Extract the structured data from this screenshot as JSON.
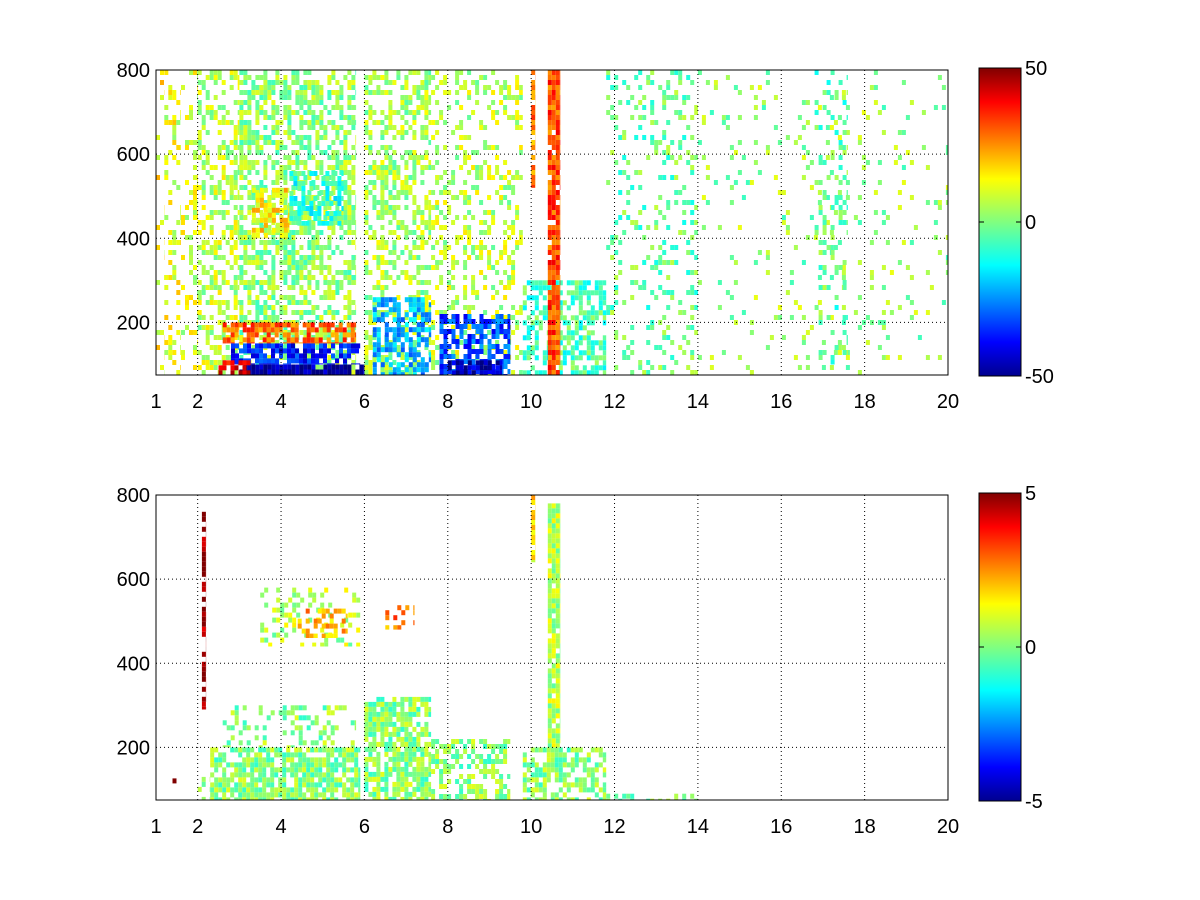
{
  "chart_data": [
    {
      "type": "heatmap",
      "title": "",
      "xlabel": "",
      "ylabel": "",
      "xlim": [
        1,
        20
      ],
      "ylim": [
        75,
        800
      ],
      "xticks": [
        1,
        2,
        4,
        6,
        8,
        10,
        12,
        14,
        16,
        18,
        20
      ],
      "yticks": [
        200,
        400,
        600,
        800
      ],
      "grid": true,
      "colorbar": {
        "colormap": "jet",
        "clim": [
          -50,
          50
        ],
        "ticks": [
          50,
          0,
          -50
        ],
        "tick_labels": [
          "50",
          "0",
          "-50"
        ]
      },
      "bands": [
        {
          "x": [
            1.0,
            1.2
          ],
          "y": [
            75,
            800
          ],
          "value": 12,
          "density": 0.18
        },
        {
          "x": [
            1.2,
            1.6
          ],
          "y": [
            75,
            800
          ],
          "value": 10,
          "density": 0.22
        },
        {
          "x": [
            1.6,
            2.0
          ],
          "y": [
            75,
            800
          ],
          "value": 8,
          "density": 0.28
        },
        {
          "x": [
            2.0,
            3.0
          ],
          "y": [
            75,
            800
          ],
          "value": 6,
          "density": 0.45
        },
        {
          "x": [
            3.0,
            5.8
          ],
          "y": [
            75,
            800
          ],
          "value": 2,
          "density": 0.55
        },
        {
          "x": [
            3.3,
            4.2
          ],
          "y": [
            400,
            520
          ],
          "value": 14,
          "density": 0.65
        },
        {
          "x": [
            4.2,
            5.5
          ],
          "y": [
            430,
            560
          ],
          "value": -8,
          "density": 0.55
        },
        {
          "x": [
            2.6,
            5.8
          ],
          "y": [
            150,
            200
          ],
          "value": 28,
          "density": 0.7
        },
        {
          "x": [
            2.8,
            5.9
          ],
          "y": [
            100,
            150
          ],
          "value": -35,
          "density": 0.7
        },
        {
          "x": [
            3.0,
            6.0
          ],
          "y": [
            75,
            100
          ],
          "value": -48,
          "density": 0.9
        },
        {
          "x": [
            2.5,
            3.3
          ],
          "y": [
            75,
            110
          ],
          "value": 40,
          "density": 0.7
        },
        {
          "x": [
            6.0,
            7.6
          ],
          "y": [
            75,
            800
          ],
          "value": 4,
          "density": 0.45
        },
        {
          "x": [
            6.2,
            7.6
          ],
          "y": [
            75,
            260
          ],
          "value": -20,
          "density": 0.6
        },
        {
          "x": [
            7.6,
            9.8
          ],
          "y": [
            75,
            800
          ],
          "value": 6,
          "density": 0.3
        },
        {
          "x": [
            7.8,
            9.5
          ],
          "y": [
            75,
            220
          ],
          "value": -30,
          "density": 0.65
        },
        {
          "x": [
            8.0,
            9.3
          ],
          "y": [
            75,
            110
          ],
          "value": -45,
          "density": 0.7
        },
        {
          "x": [
            9.8,
            11.8
          ],
          "y": [
            75,
            300
          ],
          "value": -5,
          "density": 0.55
        },
        {
          "x": [
            10.4,
            10.7
          ],
          "y": [
            75,
            800
          ],
          "value": 30,
          "density": 0.9
        },
        {
          "x": [
            10.0,
            10.1
          ],
          "y": [
            520,
            800
          ],
          "value": 25,
          "density": 0.85
        },
        {
          "x": [
            11.8,
            14.0
          ],
          "y": [
            75,
            800
          ],
          "value": -2,
          "density": 0.18
        },
        {
          "x": [
            14.0,
            20.0
          ],
          "y": [
            75,
            800
          ],
          "value": 2,
          "density": 0.07
        },
        {
          "x": [
            16.8,
            17.6
          ],
          "y": [
            100,
            800
          ],
          "value": -3,
          "density": 0.2
        }
      ]
    },
    {
      "type": "heatmap",
      "title": "",
      "xlabel": "",
      "ylabel": "",
      "xlim": [
        1,
        20
      ],
      "ylim": [
        75,
        800
      ],
      "xticks": [
        1,
        2,
        4,
        6,
        8,
        10,
        12,
        14,
        16,
        18,
        20
      ],
      "yticks": [
        200,
        400,
        600,
        800
      ],
      "grid": true,
      "colorbar": {
        "colormap": "jet",
        "clim": [
          -5,
          5
        ],
        "ticks": [
          5,
          0,
          -5
        ],
        "tick_labels": [
          "5",
          "0",
          "-5"
        ]
      },
      "bands": [
        {
          "x": [
            1.3,
            1.6
          ],
          "y": [
            75,
            150
          ],
          "value": 5,
          "density": 0.05
        },
        {
          "x": [
            2.0,
            2.3
          ],
          "y": [
            75,
            130
          ],
          "value": 0.1,
          "density": 0.4
        },
        {
          "x": [
            2.3,
            5.9
          ],
          "y": [
            75,
            200
          ],
          "value": 0.1,
          "density": 0.78
        },
        {
          "x": [
            2.6,
            5.8
          ],
          "y": [
            200,
            300
          ],
          "value": 0.1,
          "density": 0.3
        },
        {
          "x": [
            6.0,
            7.6
          ],
          "y": [
            75,
            320
          ],
          "value": 0.1,
          "density": 0.75
        },
        {
          "x": [
            7.6,
            9.5
          ],
          "y": [
            75,
            220
          ],
          "value": 0.1,
          "density": 0.55
        },
        {
          "x": [
            9.8,
            11.8
          ],
          "y": [
            75,
            200
          ],
          "value": 0.1,
          "density": 0.6
        },
        {
          "x": [
            11.8,
            14.0
          ],
          "y": [
            75,
            90
          ],
          "value": 0.1,
          "density": 0.45
        },
        {
          "x": [
            2.1,
            2.2
          ],
          "y": [
            290,
            760
          ],
          "value": 4.8,
          "density": 0.7
        },
        {
          "x": [
            3.5,
            5.9
          ],
          "y": [
            440,
            580
          ],
          "value": 0.5,
          "density": 0.22
        },
        {
          "x": [
            4.4,
            5.6
          ],
          "y": [
            460,
            530
          ],
          "value": 2.0,
          "density": 0.35
        },
        {
          "x": [
            6.5,
            7.2
          ],
          "y": [
            480,
            550
          ],
          "value": 2.5,
          "density": 0.3
        },
        {
          "x": [
            10.4,
            10.7
          ],
          "y": [
            200,
            780
          ],
          "value": 0.5,
          "density": 0.9
        },
        {
          "x": [
            10.0,
            10.1
          ],
          "y": [
            640,
            800
          ],
          "value": 1.5,
          "density": 0.8
        }
      ]
    }
  ]
}
